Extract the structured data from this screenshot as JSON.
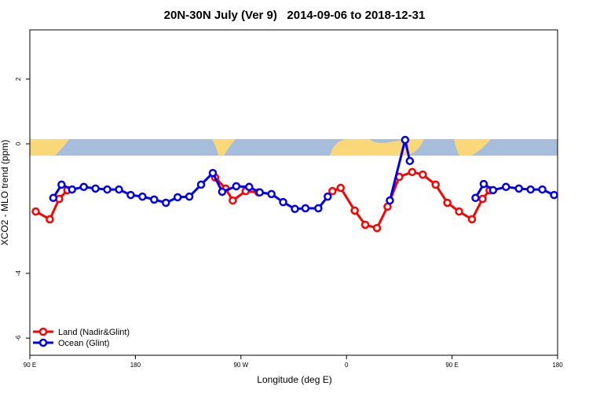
{
  "chart_data": {
    "type": "line",
    "title": "20N-30N July (Ver 9)   2014-09-06 to 2018-12-31",
    "x_label": "Longitude (deg E)",
    "y_label": "XCO2 - MLO trend (ppm)",
    "xlim": [
      90,
      540
    ],
    "ylim": [
      -6.53,
      3.52
    ],
    "xticks": [
      {
        "value": 90,
        "label": "90 E"
      },
      180,
      {
        "value": 270,
        "label": "90 W"
      },
      {
        "value": 360,
        "label": "0"
      },
      {
        "value": 450,
        "label": "90 E"
      },
      {
        "value": 540,
        "label": "180"
      }
    ],
    "yticks": [
      -6,
      -4,
      0,
      2
    ],
    "legend": "bottom-left",
    "series": [
      {
        "name": "Land (Nadir&Glint)",
        "color": "#ff0000",
        "x": [
          95,
          107,
          115,
          122,
          185,
          248,
          257,
          263,
          274,
          285,
          320,
          348,
          355,
          367,
          376,
          386,
          395,
          405,
          416,
          425,
          436,
          446,
          456,
          467,
          476,
          482
        ],
        "values": [
          -2.09,
          -2.33,
          -1.7,
          -1.43,
          null,
          -1.04,
          -1.38,
          -1.75,
          -1.46,
          -1.5,
          null,
          -1.46,
          -1.36,
          -2.06,
          -2.5,
          -2.6,
          -1.94,
          -1.02,
          -0.87,
          -0.95,
          -1.26,
          -1.82,
          -2.09,
          -2.33,
          -1.7,
          -1.43
        ]
      },
      {
        "name": "Ocean (Glint)",
        "color": "#0000ee",
        "x": [
          110,
          117,
          126,
          136,
          146,
          156,
          166,
          176,
          186,
          196,
          206,
          216,
          226,
          236,
          246,
          254,
          266,
          277,
          286,
          296,
          306,
          316,
          325,
          336,
          344,
          370,
          397,
          410,
          414,
          440,
          470,
          477,
          485,
          496,
          507,
          517,
          527,
          537
        ],
        "values": [
          -1.67,
          -1.26,
          -1.41,
          -1.33,
          -1.38,
          -1.41,
          -1.41,
          -1.58,
          -1.63,
          -1.72,
          -1.82,
          -1.65,
          -1.63,
          -1.26,
          -0.9,
          -1.48,
          -1.31,
          -1.33,
          -1.5,
          -1.55,
          -1.8,
          -2.01,
          -1.99,
          -1.99,
          -1.63,
          null,
          -1.75,
          0.12,
          -0.53,
          null,
          -1.67,
          -1.24,
          -1.43,
          -1.33,
          -1.38,
          -1.41,
          -1.41,
          -1.58
        ]
      }
    ]
  }
}
